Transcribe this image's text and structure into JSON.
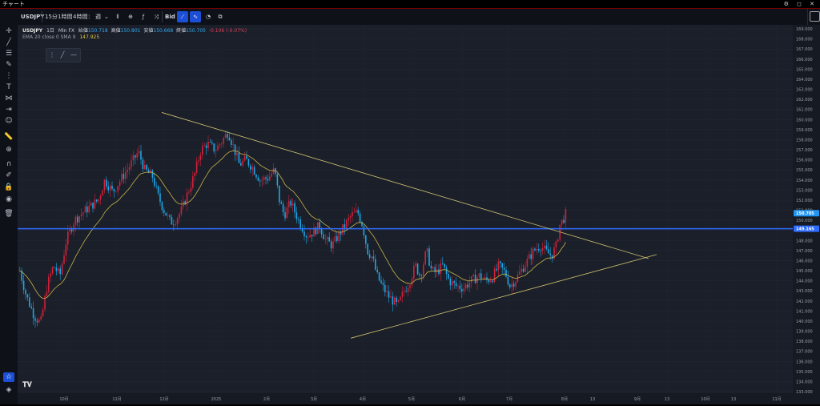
{
  "window": {
    "title": "チャート",
    "controls": "⚙ ◻ ✕"
  },
  "toolbar": {
    "symbol": "USDJPY",
    "timeframes": [
      "15分",
      "1時間",
      "4時間"
    ],
    "period": "週",
    "price_side": "Bid"
  },
  "legend": {
    "symbol": "USDJPY",
    "interval": "1日",
    "source": "Min FX",
    "open_label": "始値",
    "open": "150.718",
    "high_label": "高値",
    "high": "150.801",
    "low_label": "安値",
    "low": "150.668",
    "close_label": "終値",
    "close": "150.705",
    "change": "-0.106",
    "change_pct": "(-0.07%)",
    "indicator": "EMA 20 close 0 SMA 9",
    "indicator_value": "147.925"
  },
  "colors": {
    "background": "#1a1f29",
    "up": "#d0213a",
    "down": "#1ea6e6",
    "ema": "#c8b24a",
    "trendline": "#cfc070",
    "hline": "#2e6bff",
    "price_tag": "#2196f3",
    "change_negative": "#e0415a",
    "indicator_value": "#e8c547"
  },
  "price_axis": {
    "labels": [
      "169.000",
      "168.000",
      "167.000",
      "166.000",
      "165.000",
      "164.000",
      "163.000",
      "162.000",
      "161.000",
      "160.000",
      "159.000",
      "158.000",
      "157.000",
      "156.000",
      "155.000",
      "154.000",
      "153.000",
      "152.000",
      "151.000",
      "150.000",
      "149.000",
      "148.000",
      "147.000",
      "146.000",
      "145.000",
      "144.000",
      "143.000",
      "142.000",
      "141.000",
      "140.000",
      "139.000",
      "138.000",
      "137.000",
      "136.000",
      "135.000",
      "134.000",
      "133.000"
    ],
    "current_price_tag": "150.705",
    "hline_price_tag": "149.165"
  },
  "time_axis": {
    "labels": [
      "10月",
      "11月",
      "12月",
      "2025",
      "2月",
      "3月",
      "4月",
      "5月",
      "6月",
      "7月",
      "8月",
      "13",
      "9月",
      "13",
      "10月",
      "13",
      "11月"
    ]
  },
  "chart_data": {
    "type": "candlestick",
    "symbol": "USDJPY",
    "interval": "1日",
    "y_range": [
      132.5,
      169.5
    ],
    "x": [
      "10月",
      "11月",
      "12月",
      "2025",
      "2月",
      "3月",
      "4月",
      "5月",
      "6月",
      "7月",
      "8月"
    ],
    "close_approx": [
      148.0,
      153.0,
      150.0,
      157.5,
      153.0,
      149.5,
      143.0,
      145.0,
      144.5,
      148.5,
      150.7
    ],
    "horizontal_line": 149.165,
    "last_close": 150.705,
    "ema_last": 147.925,
    "trendlines": [
      {
        "name": "upper",
        "from": [
          "11月中旬",
          160.7
        ],
        "to": [
          "9月上旬",
          146.2
        ]
      },
      {
        "name": "lower",
        "from": [
          "4月中旬",
          138.3
        ],
        "to": [
          "9月上旬",
          146.6
        ]
      }
    ]
  }
}
